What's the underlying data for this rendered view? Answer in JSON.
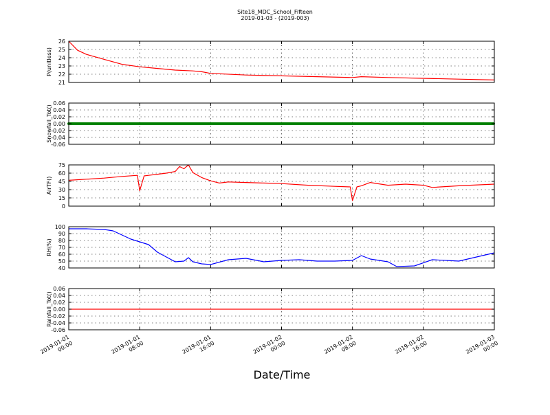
{
  "figure": {
    "title_line1": "Site18_MDC_School_Fifteen",
    "title_line2": "2019-01-03 - (2019-003)",
    "xlabel": "Date/Time"
  },
  "chart_data": [
    {
      "type": "line",
      "ylabel": "P(unitless)",
      "ylim": [
        21,
        26
      ],
      "yticks": [
        "21",
        "22",
        "23",
        "24",
        "25",
        "26"
      ],
      "grid": true,
      "series": [
        {
          "color": "#ff0000",
          "x": [
            "2019-01-01 00:00",
            "2019-01-01 01:00",
            "2019-01-01 02:00",
            "2019-01-01 03:00",
            "2019-01-01 04:00",
            "2019-01-01 06:00",
            "2019-01-01 08:00",
            "2019-01-01 10:00",
            "2019-01-01 12:00",
            "2019-01-01 14:00",
            "2019-01-01 15:00",
            "2019-01-01 16:00",
            "2019-01-01 20:00",
            "2019-01-02 00:00",
            "2019-01-02 04:00",
            "2019-01-02 08:00",
            "2019-01-02 09:00",
            "2019-01-02 12:00",
            "2019-01-02 16:00",
            "2019-01-02 20:00",
            "2019-01-03 00:00"
          ],
          "y": [
            26.0,
            24.9,
            24.4,
            24.1,
            23.8,
            23.2,
            22.9,
            22.7,
            22.5,
            22.4,
            22.3,
            22.1,
            21.9,
            21.8,
            21.7,
            21.6,
            21.7,
            21.6,
            21.5,
            21.4,
            21.3
          ]
        }
      ]
    },
    {
      "type": "scatter",
      "ylabel": "Snowfall_Tot()",
      "ylim": [
        -0.06,
        0.06
      ],
      "yticks": [
        "-0.06",
        "-0.04",
        "-0.02",
        "0.00",
        "0.02",
        "0.04",
        "0.06"
      ],
      "grid": true,
      "series": [
        {
          "color": "#008000",
          "x_range": [
            "2019-01-01 00:00",
            "2019-01-03 00:00"
          ],
          "constant_y": 0.0
        }
      ]
    },
    {
      "type": "line",
      "ylabel": "AirTF()",
      "ylim": [
        0,
        75
      ],
      "yticks": [
        "0",
        "15",
        "30",
        "45",
        "60",
        "75"
      ],
      "grid": true,
      "series": [
        {
          "color": "#ff0000",
          "x": [
            "2019-01-01 00:00",
            "2019-01-01 02:00",
            "2019-01-01 04:00",
            "2019-01-01 06:00",
            "2019-01-01 07:45",
            "2019-01-01 08:00",
            "2019-01-01 08:30",
            "2019-01-01 09:00",
            "2019-01-01 10:00",
            "2019-01-01 11:00",
            "2019-01-01 12:00",
            "2019-01-01 12:30",
            "2019-01-01 13:00",
            "2019-01-01 13:30",
            "2019-01-01 14:00",
            "2019-01-01 15:00",
            "2019-01-01 16:00",
            "2019-01-01 17:00",
            "2019-01-01 18:00",
            "2019-01-01 20:00",
            "2019-01-01 22:00",
            "2019-01-02 00:00",
            "2019-01-02 03:00",
            "2019-01-02 06:00",
            "2019-01-02 07:45",
            "2019-01-02 08:00",
            "2019-01-02 08:30",
            "2019-01-02 09:00",
            "2019-01-02 10:00",
            "2019-01-02 12:00",
            "2019-01-02 14:00",
            "2019-01-02 16:00",
            "2019-01-02 17:00",
            "2019-01-02 20:00",
            "2019-01-03 00:00"
          ],
          "y": [
            47,
            49,
            51,
            54,
            56,
            28,
            55,
            56,
            58,
            60,
            63,
            72,
            68,
            75,
            61,
            52,
            46,
            42,
            44,
            43,
            42,
            41,
            38,
            36,
            35,
            10,
            35,
            37,
            43,
            38,
            40,
            38,
            34,
            37,
            40
          ]
        }
      ]
    },
    {
      "type": "line",
      "ylabel": "RH(%)",
      "ylim": [
        40,
        100
      ],
      "yticks": [
        "40",
        "50",
        "60",
        "70",
        "80",
        "90",
        "100"
      ],
      "grid": true,
      "series": [
        {
          "color": "#0000ff",
          "x": [
            "2019-01-01 00:00",
            "2019-01-01 02:00",
            "2019-01-01 04:00",
            "2019-01-01 05:00",
            "2019-01-01 06:00",
            "2019-01-01 07:00",
            "2019-01-01 08:00",
            "2019-01-01 09:00",
            "2019-01-01 10:00",
            "2019-01-01 11:00",
            "2019-01-01 12:00",
            "2019-01-01 13:00",
            "2019-01-01 13:30",
            "2019-01-01 14:00",
            "2019-01-01 15:00",
            "2019-01-01 16:00",
            "2019-01-01 18:00",
            "2019-01-01 20:00",
            "2019-01-01 22:00",
            "2019-01-02 00:00",
            "2019-01-02 02:00",
            "2019-01-02 04:00",
            "2019-01-02 06:00",
            "2019-01-02 08:00",
            "2019-01-02 09:00",
            "2019-01-02 10:00",
            "2019-01-02 12:00",
            "2019-01-02 13:00",
            "2019-01-02 15:00",
            "2019-01-02 17:00",
            "2019-01-02 20:00",
            "2019-01-02 22:00",
            "2019-01-03 00:00"
          ],
          "y": [
            97,
            97,
            96,
            94,
            88,
            82,
            78,
            74,
            63,
            56,
            49,
            50,
            55,
            49,
            46,
            45,
            52,
            54,
            49,
            51,
            52,
            50,
            50,
            51,
            58,
            53,
            49,
            42,
            43,
            52,
            50,
            56,
            62
          ]
        }
      ]
    },
    {
      "type": "line",
      "ylabel": "Rainfall_Tot()",
      "ylim": [
        -0.06,
        0.06
      ],
      "yticks": [
        "-0.06",
        "-0.04",
        "-0.02",
        "0.00",
        "0.02",
        "0.04",
        "0.06"
      ],
      "grid": true,
      "series": [
        {
          "color": "#ff0000",
          "x": [
            "2019-01-01 00:00",
            "2019-01-03 00:00"
          ],
          "y": [
            0.0,
            0.0
          ]
        }
      ]
    }
  ],
  "xaxis": {
    "range": [
      "2019-01-01 00:00",
      "2019-01-03 00:00"
    ],
    "ticks": [
      {
        "at": "2019-01-01 00:00",
        "line1": "2019-01-01",
        "line2": "00:00"
      },
      {
        "at": "2019-01-01 08:00",
        "line1": "2019-01-01",
        "line2": "08:00"
      },
      {
        "at": "2019-01-01 16:00",
        "line1": "2019-01-01",
        "line2": "16:00"
      },
      {
        "at": "2019-01-02 00:00",
        "line1": "2019-01-02",
        "line2": "00:00"
      },
      {
        "at": "2019-01-02 08:00",
        "line1": "2019-01-02",
        "line2": "08:00"
      },
      {
        "at": "2019-01-02 16:00",
        "line1": "2019-01-02",
        "line2": "16:00"
      },
      {
        "at": "2019-01-03 00:00",
        "line1": "2019-01-03",
        "line2": "00:00"
      }
    ]
  }
}
